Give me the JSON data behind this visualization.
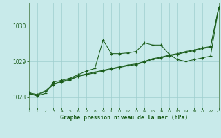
{
  "title": "Graphe pression niveau de la mer (hPa)",
  "bg_color": "#c8eaea",
  "grid_color": "#9ecece",
  "line_color": "#1a5c1a",
  "xlim": [
    0,
    23
  ],
  "ylim": [
    1027.7,
    1030.65
  ],
  "yticks": [
    1028,
    1029,
    1030
  ],
  "xticks": [
    0,
    1,
    2,
    3,
    4,
    5,
    6,
    7,
    8,
    9,
    10,
    11,
    12,
    13,
    14,
    15,
    16,
    17,
    18,
    19,
    20,
    21,
    22,
    23
  ],
  "line1_x": [
    0,
    1,
    2,
    3,
    4,
    5,
    6,
    7,
    8,
    9,
    10,
    11,
    12,
    13,
    14,
    15,
    16,
    17,
    18,
    19,
    20,
    21,
    22,
    23
  ],
  "line1_y": [
    1028.1,
    1028.05,
    1028.15,
    1028.35,
    1028.42,
    1028.48,
    1028.58,
    1028.63,
    1028.68,
    1028.73,
    1028.78,
    1028.83,
    1028.88,
    1028.91,
    1028.98,
    1029.06,
    1029.1,
    1029.16,
    1029.2,
    1029.26,
    1029.3,
    1029.36,
    1029.4,
    1030.52
  ],
  "line2_x": [
    0,
    1,
    2,
    3,
    4,
    5,
    6,
    7,
    8,
    9,
    10,
    11,
    12,
    13,
    14,
    15,
    16,
    17,
    18,
    19,
    20,
    21,
    22,
    23
  ],
  "line2_y": [
    1028.12,
    1028.07,
    1028.17,
    1028.37,
    1028.44,
    1028.5,
    1028.6,
    1028.65,
    1028.7,
    1028.75,
    1028.8,
    1028.85,
    1028.9,
    1028.93,
    1029.0,
    1029.08,
    1029.12,
    1029.18,
    1029.22,
    1029.28,
    1029.32,
    1029.38,
    1029.42,
    1030.52
  ],
  "line3_x": [
    0,
    1,
    2,
    3,
    4,
    5,
    6,
    7,
    8,
    9,
    10,
    11,
    12,
    13,
    14,
    15,
    16,
    17,
    18,
    19,
    20,
    21,
    22,
    23
  ],
  "line3_y": [
    1028.1,
    1028.03,
    1028.1,
    1028.42,
    1028.47,
    1028.53,
    1028.63,
    1028.73,
    1028.8,
    1029.6,
    1029.22,
    1029.22,
    1029.24,
    1029.28,
    1029.52,
    1029.46,
    1029.46,
    1029.2,
    1029.05,
    1029.0,
    1029.05,
    1029.1,
    1029.15,
    1030.52
  ]
}
